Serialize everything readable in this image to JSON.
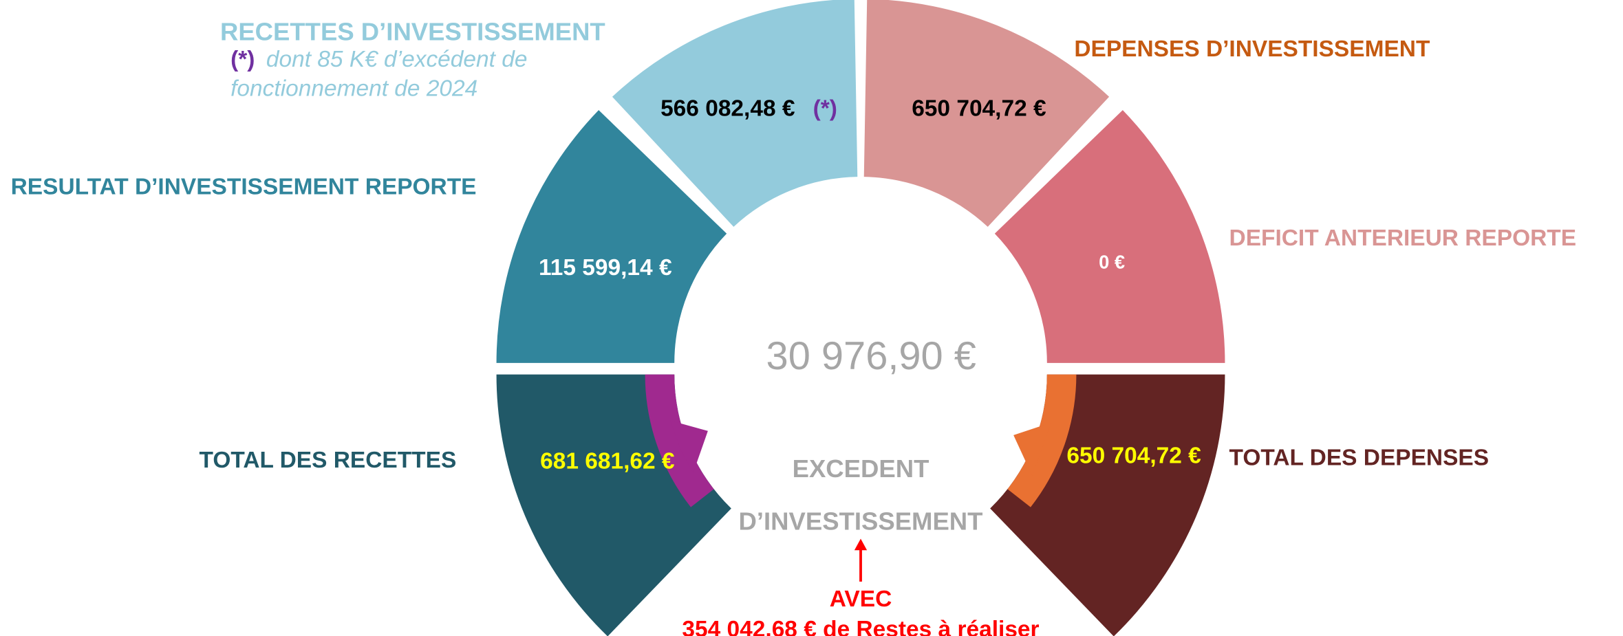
{
  "segments": [
    {
      "title": "RECETTES D’INVESTISSEMENT",
      "value": "566 082,48 €",
      "marker": "(*)"
    },
    {
      "title": "RESULTAT D’INVESTISSEMENT REPORTE",
      "value": "115 599,14 €"
    },
    {
      "title": "TOTAL DES RECETTES",
      "value": "681 681,62 €"
    },
    {
      "title": "DEPENSES D’INVESTISSEMENT",
      "value": "650 704,72 €"
    },
    {
      "title": "DEFICIT ANTERIEUR REPORTE",
      "value": "0 €"
    },
    {
      "title": "TOTAL DES DEPENSES",
      "value": "650 704,72 €"
    }
  ],
  "note": {
    "marker": "(*)",
    "lines": [
      "dont 85 K€ d’excédent de",
      "fonctionnement de 2024"
    ]
  },
  "center": {
    "value": "30 976,90 €",
    "lines": [
      "EXCEDENT",
      "D’INVESTISSEMENT"
    ]
  },
  "footnote": {
    "lines": [
      "AVEC",
      "354 042,68 € de Restes à réaliser"
    ]
  }
}
